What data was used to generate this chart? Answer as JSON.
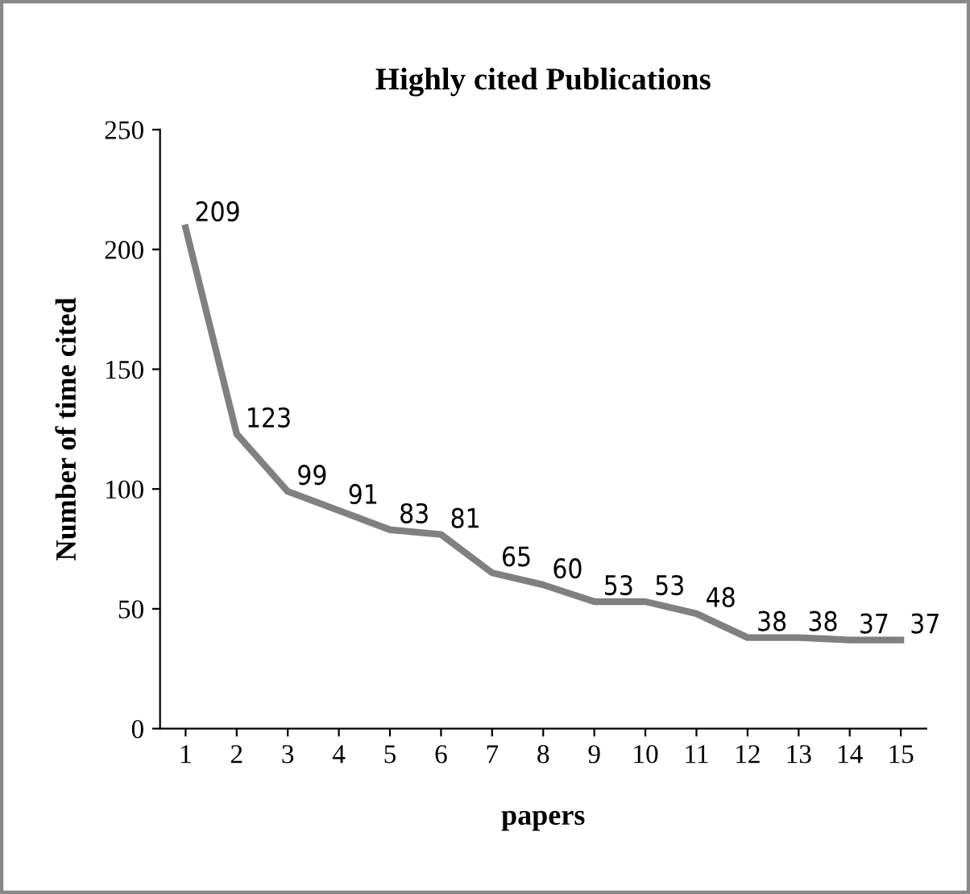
{
  "chart_data": {
    "type": "line",
    "title": "Highly cited Publications",
    "xlabel": "papers",
    "ylabel": "Number of time cited",
    "categories": [
      "1",
      "2",
      "3",
      "4",
      "5",
      "6",
      "7",
      "8",
      "9",
      "10",
      "11",
      "12",
      "13",
      "14",
      "15"
    ],
    "series": [
      {
        "color": "#808080",
        "values": [
          209,
          123,
          99,
          91,
          83,
          81,
          65,
          60,
          53,
          53,
          48,
          38,
          38,
          37,
          37
        ]
      }
    ],
    "ylim": [
      0,
      250
    ],
    "yticks": [
      0,
      50,
      100,
      150,
      200,
      250
    ],
    "data_labels": true,
    "grid": false,
    "legend": false,
    "marker": "none",
    "line_style": "solid"
  }
}
